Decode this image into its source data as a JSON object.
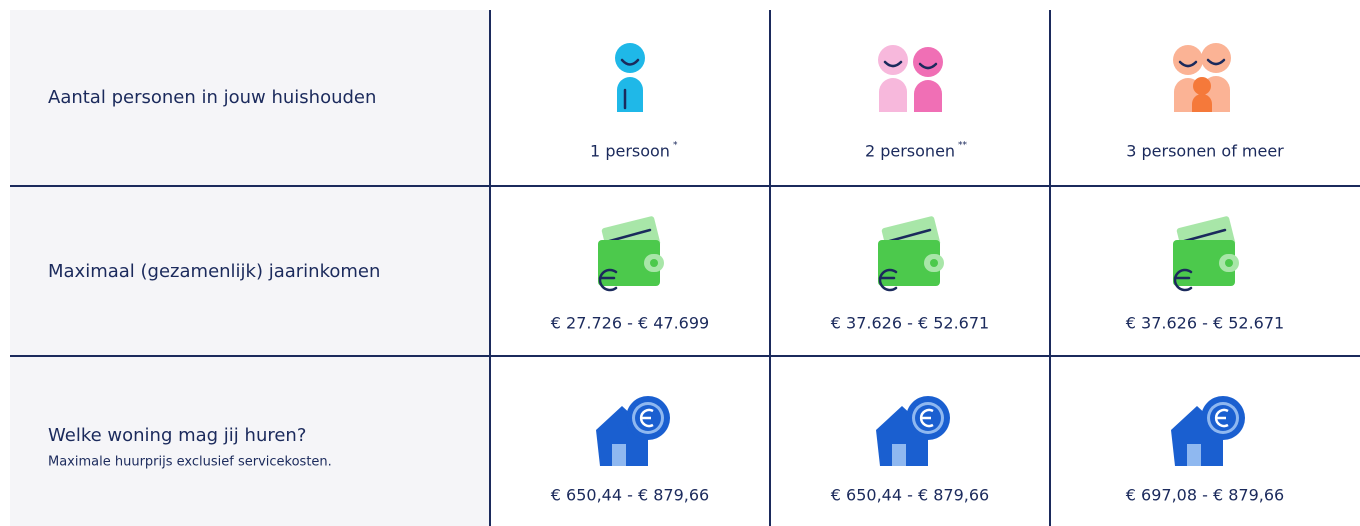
{
  "table": {
    "rows": [
      {
        "label": "Aantal personen in jouw huishouden",
        "cells": [
          {
            "text": "1 persoon",
            "note": "*"
          },
          {
            "text": "2 personen",
            "note": "**"
          },
          {
            "text": "3 personen of meer"
          }
        ]
      },
      {
        "label": "Maximaal (gezamenlijk) jaarinkomen",
        "cells": [
          {
            "text": "€ 27.726 - € 47.699"
          },
          {
            "text": "€ 37.626 - € 52.671"
          },
          {
            "text": "€ 37.626 - € 52.671"
          }
        ]
      },
      {
        "label": "Welke woning mag jij huren?",
        "sublabel": "Maximale huurprijs exclusief servicekosten.",
        "cells": [
          {
            "text": "€ 650,44 - € 879,66"
          },
          {
            "text": "€ 650,44 - € 879,66"
          },
          {
            "text": "€ 697,08 - € 879,66"
          }
        ]
      }
    ]
  }
}
